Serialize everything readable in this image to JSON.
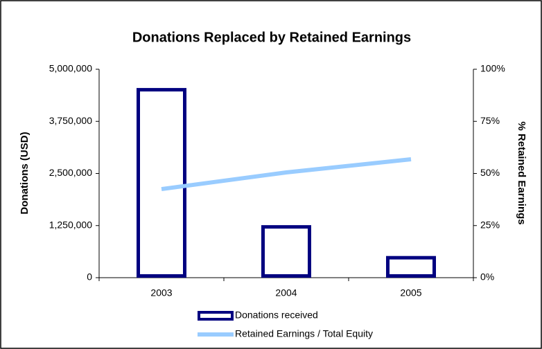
{
  "chart_data": {
    "type": "bar",
    "title": "Donations Replaced by Retained Earnings",
    "ylabel": "Donations (USD)",
    "y2label": "% Retained Earnings",
    "categories": [
      "2003",
      "2004",
      "2005"
    ],
    "series": [
      {
        "name": "Donations received",
        "type": "bar",
        "color": "#000080",
        "values": [
          4550000,
          1260000,
          520000
        ]
      },
      {
        "name": "Retained Earnings / Total Equity",
        "type": "line",
        "axis": "y2",
        "color": "#99ccff",
        "values": [
          42.5,
          50.5,
          56.8
        ]
      }
    ],
    "ylim": [
      0,
      5000000
    ],
    "yticks": [
      0,
      {
        "value": 1250000,
        "label": "1,250,000"
      },
      {
        "value": 2500000,
        "label": "2,500,000"
      },
      {
        "value": 3750000,
        "label": "3,750,000"
      },
      {
        "value": 5000000,
        "label": "5,000,000"
      }
    ],
    "y2lim": [
      0,
      100
    ],
    "y2ticks": [
      {
        "value": 0,
        "label": "0%"
      },
      {
        "value": 25,
        "label": "25%"
      },
      {
        "value": 50,
        "label": "50%"
      },
      {
        "value": 75,
        "label": "75%"
      },
      {
        "value": 100,
        "label": "100%"
      }
    ],
    "grid": false,
    "legend": "bottom"
  }
}
